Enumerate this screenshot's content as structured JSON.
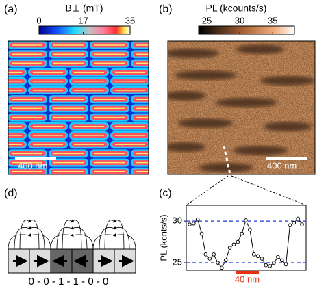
{
  "panels": [
    "(a)",
    "(b)",
    "(c)",
    "(d)"
  ],
  "colorbars": [
    {
      "title": "B⊥ (mT)",
      "lim": [
        0,
        35
      ],
      "ticks": [
        0,
        17,
        35
      ]
    },
    {
      "title": "PL (kcounts/s)",
      "lim": [
        23.75,
        38.3
      ],
      "ticks": [
        25,
        30,
        35
      ]
    }
  ],
  "scale_bars": [
    "400 nm",
    "400 nm"
  ],
  "bit_string": "0 - 0 - 1 - 1 - 0 - 0",
  "chart_data": {
    "type": "line",
    "y_label": "PL (kcnts/s)",
    "scale_bar": "40 nm",
    "values": [
      29.6,
      29.7,
      30.2,
      28.5,
      26.0,
      25.5,
      26.0,
      25.0,
      24.4,
      25.3,
      26.8,
      27.2,
      27.5,
      28.5,
      30.1,
      29.0,
      26.0,
      25.8,
      25.5,
      24.7,
      24.6,
      25.0,
      25.7,
      25.3,
      24.8,
      29.5,
      29.8,
      30.3,
      29.6
    ],
    "color": "#000",
    "ylim": [
      24.1,
      31.9
    ],
    "yticks": [
      25,
      30
    ],
    "grid": true,
    "grid_color": "#2233dd"
  }
}
